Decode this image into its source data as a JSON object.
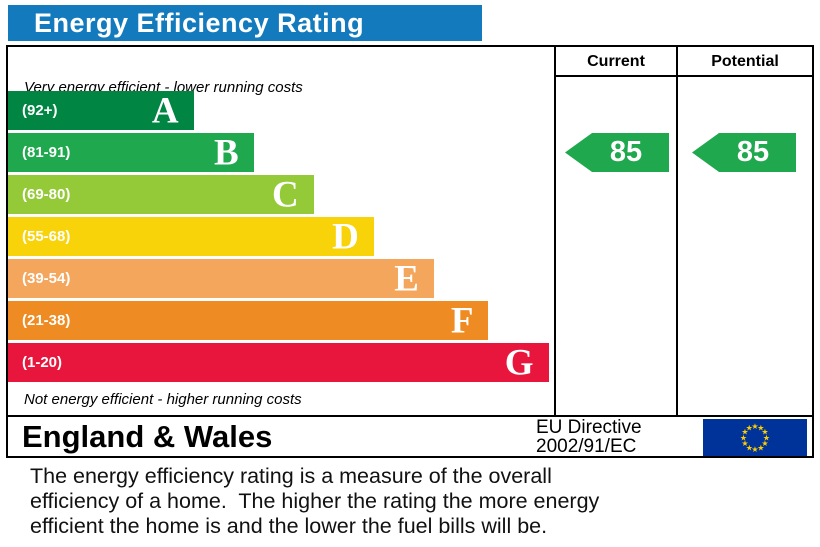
{
  "header": {
    "title": "Energy Efficiency Rating",
    "bar_color": "#127abd"
  },
  "table": {
    "current_label": "Current",
    "potential_label": "Potential",
    "top_note": "Very energy efficient - lower running costs",
    "bottom_note": "Not energy efficient - higher running costs"
  },
  "bands": [
    {
      "letter": "A",
      "range": "(92+)",
      "color": "#008543",
      "width_pct": 34
    },
    {
      "letter": "B",
      "range": "(81-91)",
      "color": "#1fa84e",
      "width_pct": 45
    },
    {
      "letter": "C",
      "range": "(69-80)",
      "color": "#94ca37",
      "width_pct": 56
    },
    {
      "letter": "D",
      "range": "(55-68)",
      "color": "#f8d30a",
      "width_pct": 67
    },
    {
      "letter": "E",
      "range": "(39-54)",
      "color": "#f4a65d",
      "width_pct": 78
    },
    {
      "letter": "F",
      "range": "(21-38)",
      "color": "#ee8b22",
      "width_pct": 88
    },
    {
      "letter": "G",
      "range": "(1-20)",
      "color": "#e8153d",
      "width_pct": 99
    }
  ],
  "ratings": {
    "current": "85",
    "potential": "85",
    "arrow_color": "#1fa84e"
  },
  "footer": {
    "region": "England & Wales",
    "directive_line1": "EU Directive",
    "directive_line2": "2002/91/EC",
    "flag_blue": "#003399",
    "flag_star": "#ffcc00"
  },
  "description": {
    "text": "The energy efficiency rating is a measure of the overall\nefficiency of a home.  The higher the rating the more energy\nefficient the home is and the lower the fuel bills will be."
  },
  "chart_data": {
    "type": "bar",
    "title": "Energy Efficiency Rating",
    "categories": [
      "A (92+)",
      "B (81-91)",
      "C (69-80)",
      "D (55-68)",
      "E (39-54)",
      "F (21-38)",
      "G (1-20)"
    ],
    "series": [
      {
        "name": "Current",
        "values": [
          85
        ],
        "band": "B"
      },
      {
        "name": "Potential",
        "values": [
          85
        ],
        "band": "B"
      }
    ],
    "notes": [
      "Very energy efficient - lower running costs",
      "Not energy efficient - higher running costs"
    ],
    "band_colors": [
      "#008543",
      "#1fa84e",
      "#94ca37",
      "#f8d30a",
      "#f4a65d",
      "#ee8b22",
      "#e8153d"
    ],
    "legend_position": "none",
    "grid": false
  }
}
